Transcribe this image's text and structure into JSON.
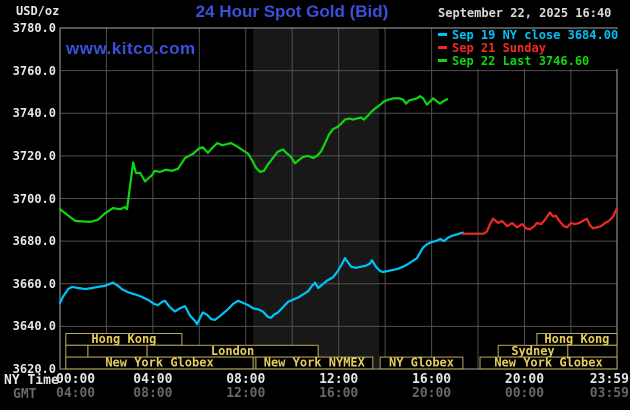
{
  "header": {
    "unit": "USD/oz",
    "title": "24 Hour Spot Gold (Bid)",
    "datetime": "September 22, 2025 16:40",
    "watermark": "www.kitco.com"
  },
  "legend": [
    {
      "label": "Sep 19 NY close 3684.00",
      "color_key": "cyan"
    },
    {
      "label": "Sep 21 Sunday",
      "color_key": "red"
    },
    {
      "label": "Sep 22 Last 3746.60",
      "color_key": "green"
    }
  ],
  "colors": {
    "cyan": "#00c3f7",
    "red": "#ee2a24",
    "green": "#0fd60f",
    "title_blue": "#3b50da",
    "khaki_border": "#b9ab55",
    "khaki_text": "#e6ce5c",
    "grid": "#505050",
    "border": "#8c8c8c",
    "band": "#181818",
    "white": "#e6e6e6",
    "gmt_gray": "#686868"
  },
  "axes": {
    "ny_time_label": "NY Time",
    "gmt_label": "GMT",
    "tick_minutes": [
      0,
      240,
      480,
      720,
      960,
      1200,
      1439
    ],
    "ny_tick_labels": [
      "00:00",
      "04:00",
      "08:00",
      "12:00",
      "16:00",
      "20:00",
      "23:59"
    ],
    "gmt_tick_labels": [
      "04:00",
      "08:00",
      "12:00",
      "16:00",
      "20:00",
      "00:00",
      "03:59"
    ],
    "y_tick_labels": [
      "3780.0",
      "3760.0",
      "3740.0",
      "3720.0",
      "3700.0",
      "3680.0",
      "3660.0",
      "3640.0",
      "3620.0"
    ]
  },
  "chart_data": {
    "type": "line",
    "title": "24 Hour Spot Gold (Bid)",
    "ylabel": "USD/oz",
    "ylim": [
      3620,
      3780
    ],
    "y_tick_step": 20,
    "xlim_minutes": [
      0,
      1439
    ],
    "grid": true,
    "legend_position": "top-right",
    "shaded_band_minutes": [
      499,
      824
    ],
    "series": [
      {
        "name": "Sep 19 NY close",
        "color_key": "cyan",
        "close_value": 3684.0,
        "points": [
          [
            0,
            3651
          ],
          [
            8,
            3654
          ],
          [
            21,
            3657.5
          ],
          [
            31,
            3658.5
          ],
          [
            47,
            3658
          ],
          [
            65,
            3657.5
          ],
          [
            83,
            3658
          ],
          [
            98,
            3658.5
          ],
          [
            116,
            3659
          ],
          [
            129,
            3660
          ],
          [
            137,
            3660.5
          ],
          [
            150,
            3659
          ],
          [
            160,
            3657.5
          ],
          [
            176,
            3656
          ],
          [
            194,
            3655
          ],
          [
            209,
            3654
          ],
          [
            227,
            3652.5
          ],
          [
            243,
            3650.5
          ],
          [
            253,
            3650
          ],
          [
            264,
            3651.5
          ],
          [
            271,
            3652
          ],
          [
            284,
            3649
          ],
          [
            297,
            3647
          ],
          [
            310,
            3648.5
          ],
          [
            323,
            3649.5
          ],
          [
            336,
            3645
          ],
          [
            349,
            3642.5
          ],
          [
            354,
            3641
          ],
          [
            362,
            3644
          ],
          [
            369,
            3646.5
          ],
          [
            380,
            3645.5
          ],
          [
            390,
            3643.5
          ],
          [
            400,
            3643
          ],
          [
            411,
            3644.5
          ],
          [
            424,
            3646.5
          ],
          [
            434,
            3648
          ],
          [
            447,
            3650.5
          ],
          [
            460,
            3652
          ],
          [
            473,
            3651
          ],
          [
            486,
            3650
          ],
          [
            499,
            3648.5
          ],
          [
            512,
            3648
          ],
          [
            524,
            3647
          ],
          [
            537,
            3644.5
          ],
          [
            545,
            3644
          ],
          [
            553,
            3645.5
          ],
          [
            563,
            3646.5
          ],
          [
            576,
            3649
          ],
          [
            589,
            3651.5
          ],
          [
            602,
            3652.5
          ],
          [
            615,
            3653.5
          ],
          [
            628,
            3655
          ],
          [
            641,
            3656.5
          ],
          [
            651,
            3659
          ],
          [
            659,
            3660.5
          ],
          [
            667,
            3658
          ],
          [
            677,
            3659.5
          ],
          [
            690,
            3661.5
          ],
          [
            705,
            3663
          ],
          [
            718,
            3666
          ],
          [
            729,
            3669.5
          ],
          [
            736,
            3672
          ],
          [
            744,
            3670
          ],
          [
            752,
            3668
          ],
          [
            765,
            3667.5
          ],
          [
            778,
            3668
          ],
          [
            791,
            3668.5
          ],
          [
            801,
            3669.5
          ],
          [
            806,
            3671
          ],
          [
            816,
            3668
          ],
          [
            827,
            3666
          ],
          [
            834,
            3665.5
          ],
          [
            847,
            3666
          ],
          [
            860,
            3666.5
          ],
          [
            873,
            3667
          ],
          [
            886,
            3668
          ],
          [
            897,
            3669
          ],
          [
            909,
            3670.5
          ],
          [
            922,
            3672
          ],
          [
            930,
            3674.5
          ],
          [
            938,
            3677
          ],
          [
            948,
            3678.5
          ],
          [
            959,
            3679.5
          ],
          [
            971,
            3680
          ],
          [
            982,
            3681
          ],
          [
            992,
            3680
          ],
          [
            1002,
            3681.5
          ],
          [
            1013,
            3682.5
          ],
          [
            1023,
            3683
          ],
          [
            1041,
            3684
          ]
        ]
      },
      {
        "name": "Sep 21 Sunday",
        "color_key": "red",
        "points": [
          [
            1041,
            3683.5
          ],
          [
            1095,
            3683.5
          ],
          [
            1103,
            3684.5
          ],
          [
            1111,
            3688
          ],
          [
            1119,
            3690.5
          ],
          [
            1132,
            3688.5
          ],
          [
            1142,
            3689.5
          ],
          [
            1155,
            3687
          ],
          [
            1168,
            3688.5
          ],
          [
            1181,
            3686.5
          ],
          [
            1194,
            3688
          ],
          [
            1204,
            3686
          ],
          [
            1214,
            3685.5
          ],
          [
            1225,
            3687
          ],
          [
            1232,
            3688.5
          ],
          [
            1243,
            3688
          ],
          [
            1253,
            3690
          ],
          [
            1266,
            3693.5
          ],
          [
            1274,
            3691.5
          ],
          [
            1281,
            3692
          ],
          [
            1292,
            3689
          ],
          [
            1302,
            3687
          ],
          [
            1310,
            3686.5
          ],
          [
            1320,
            3688.5
          ],
          [
            1330,
            3688
          ],
          [
            1341,
            3688.5
          ],
          [
            1351,
            3689.5
          ],
          [
            1361,
            3690.5
          ],
          [
            1369,
            3687.5
          ],
          [
            1377,
            3686
          ],
          [
            1387,
            3686.5
          ],
          [
            1398,
            3687
          ],
          [
            1408,
            3688.5
          ],
          [
            1418,
            3689.5
          ],
          [
            1429,
            3691.5
          ],
          [
            1439,
            3695.5
          ]
        ]
      },
      {
        "name": "Sep 22 Last",
        "color_key": "green",
        "last_value": 3746.6,
        "points": [
          [
            0,
            3695
          ],
          [
            39,
            3689.5
          ],
          [
            77,
            3689
          ],
          [
            98,
            3690
          ],
          [
            116,
            3693
          ],
          [
            137,
            3695.5
          ],
          [
            155,
            3695
          ],
          [
            168,
            3696
          ],
          [
            173,
            3695
          ],
          [
            181,
            3706
          ],
          [
            189,
            3717
          ],
          [
            196,
            3712
          ],
          [
            207,
            3712
          ],
          [
            220,
            3708
          ],
          [
            225,
            3709
          ],
          [
            238,
            3711
          ],
          [
            245,
            3713
          ],
          [
            258,
            3712.5
          ],
          [
            274,
            3713.5
          ],
          [
            289,
            3713
          ],
          [
            305,
            3714
          ],
          [
            323,
            3719
          ],
          [
            344,
            3721
          ],
          [
            359,
            3723.5
          ],
          [
            369,
            3724
          ],
          [
            382,
            3721.5
          ],
          [
            395,
            3724
          ],
          [
            406,
            3726
          ],
          [
            419,
            3725
          ],
          [
            431,
            3725.5
          ],
          [
            442,
            3726
          ],
          [
            457,
            3724.5
          ],
          [
            473,
            3722.5
          ],
          [
            486,
            3721
          ],
          [
            496,
            3718
          ],
          [
            506,
            3714.5
          ],
          [
            517,
            3712.5
          ],
          [
            527,
            3713
          ],
          [
            537,
            3716
          ],
          [
            550,
            3719
          ],
          [
            563,
            3722
          ],
          [
            576,
            3723
          ],
          [
            587,
            3721
          ],
          [
            597,
            3719.5
          ],
          [
            607,
            3716.5
          ],
          [
            617,
            3718
          ],
          [
            628,
            3719.5
          ],
          [
            641,
            3720
          ],
          [
            654,
            3719
          ],
          [
            664,
            3720
          ],
          [
            674,
            3722
          ],
          [
            685,
            3726
          ],
          [
            695,
            3730
          ],
          [
            705,
            3732.5
          ],
          [
            716,
            3733.5
          ],
          [
            726,
            3735
          ],
          [
            736,
            3737
          ],
          [
            747,
            3737.5
          ],
          [
            757,
            3737
          ],
          [
            767,
            3737.5
          ],
          [
            778,
            3738
          ],
          [
            785,
            3737
          ],
          [
            796,
            3739
          ],
          [
            806,
            3741
          ],
          [
            816,
            3742.5
          ],
          [
            827,
            3744
          ],
          [
            837,
            3745.5
          ],
          [
            850,
            3746.5
          ],
          [
            863,
            3747
          ],
          [
            876,
            3747
          ],
          [
            886,
            3746.5
          ],
          [
            894,
            3744.5
          ],
          [
            902,
            3746
          ],
          [
            912,
            3746.5
          ],
          [
            922,
            3747
          ],
          [
            930,
            3748
          ],
          [
            938,
            3747
          ],
          [
            948,
            3744
          ],
          [
            956,
            3745.5
          ],
          [
            964,
            3747
          ],
          [
            971,
            3746
          ],
          [
            982,
            3744.5
          ],
          [
            989,
            3745.5
          ],
          [
            1000,
            3746.6
          ]
        ]
      }
    ],
    "sessions": {
      "rows": [
        {
          "boxes": [
            {
              "label": "Hong Kong",
              "start_min": 15,
              "end_min": 315
            },
            {
              "label": "Hong Kong",
              "start_min": 1232,
              "end_min": 1439
            }
          ]
        },
        {
          "boxes": [
            {
              "label": "",
              "start_min": 15,
              "end_min": 72
            },
            {
              "label": "",
              "start_min": 72,
              "end_min": 225
            },
            {
              "label": "London",
              "start_min": 225,
              "end_min": 667
            },
            {
              "label": "Sydney",
              "start_min": 1132,
              "end_min": 1312
            },
            {
              "label": "",
              "start_min": 1312,
              "end_min": 1439
            }
          ]
        },
        {
          "boxes": [
            {
              "label": "New York Globex",
              "start_min": 15,
              "end_min": 499
            },
            {
              "label": "New York NYMEX",
              "start_min": 506,
              "end_min": 808
            },
            {
              "label": "NY Globex",
              "start_min": 827,
              "end_min": 1041
            },
            {
              "label": "New York Globex",
              "start_min": 1085,
              "end_min": 1439
            }
          ]
        }
      ]
    }
  }
}
